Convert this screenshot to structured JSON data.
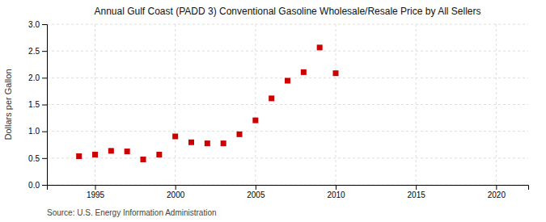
{
  "chart_data": {
    "type": "scatter",
    "title": "Annual Gulf Coast (PADD 3) Conventional Gasoline Wholesale/Resale Price by All Sellers",
    "ylabel": "Dollars per Gallon",
    "source": "Source: U.S. Energy Information Administration",
    "x": [
      1994,
      1995,
      1996,
      1997,
      1998,
      1999,
      2000,
      2001,
      2002,
      2003,
      2004,
      2005,
      2006,
      2007,
      2008,
      2009,
      2010
    ],
    "values": [
      0.535,
      0.565,
      0.635,
      0.625,
      0.475,
      0.565,
      0.905,
      0.795,
      0.775,
      0.775,
      0.945,
      1.205,
      1.615,
      1.945,
      2.105,
      2.565,
      2.085
    ],
    "color": "#cc0000",
    "marker": "square",
    "xlim": [
      1992,
      2022
    ],
    "xticks": [
      1995,
      2000,
      2005,
      2010,
      2015,
      2020
    ],
    "ylim": [
      0.0,
      3.0
    ],
    "yticks": [
      {
        "value": 0.0,
        "label": "0.0"
      },
      0.5,
      {
        "value": 1.0,
        "label": "1.0"
      },
      1.5,
      {
        "value": 2.0,
        "label": "2.0"
      },
      2.5,
      {
        "value": 3.0,
        "label": "3.0"
      }
    ],
    "grid": true
  }
}
